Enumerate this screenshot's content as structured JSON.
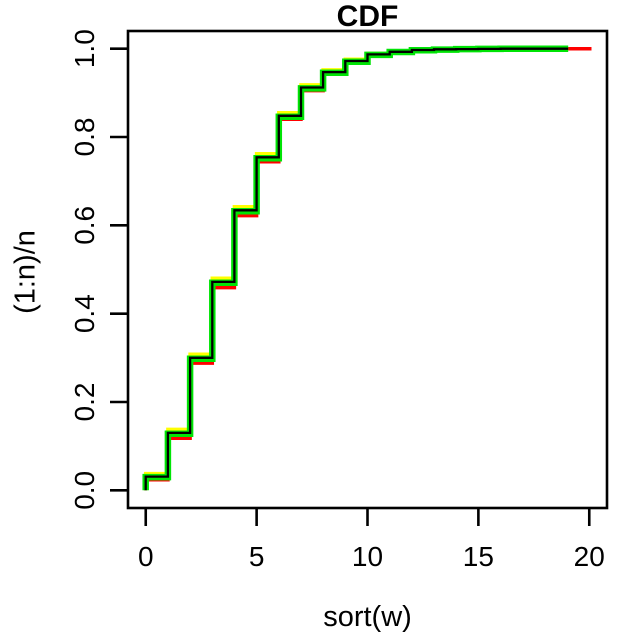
{
  "chart_data": {
    "type": "line",
    "subtype": "step-cdf",
    "title": "CDF",
    "xlabel": "sort(w)",
    "ylabel": "(1:n)/n",
    "xlim": [
      -0.8,
      20.8
    ],
    "ylim": [
      -0.04,
      1.04
    ],
    "grid": false,
    "legend": "none",
    "x_ticks": {
      "values": [
        0,
        5,
        10,
        15,
        20
      ],
      "labels": [
        "0",
        "5",
        "10",
        "15",
        "20"
      ]
    },
    "y_ticks": {
      "values": [
        0,
        0.2,
        0.4,
        0.6,
        0.8,
        1.0
      ],
      "labels": [
        "0.0",
        "0.2",
        "0.4",
        "0.6",
        "0.8",
        "1.0"
      ]
    },
    "series": [
      {
        "name": "red-cdf",
        "color": "#FF0000",
        "line_width": 3.5,
        "x_start": 0,
        "y_start": 0,
        "x_end": 20.1,
        "step_x0": 0,
        "step_dx": 1,
        "levels": [
          0.024,
          0.118,
          0.288,
          0.459,
          0.622,
          0.744,
          0.84,
          0.905,
          0.942,
          0.968,
          0.984,
          0.991,
          0.995,
          0.997,
          0.998,
          0.999,
          0.9995,
          1,
          1,
          1
        ]
      },
      {
        "name": "yellow-cdf",
        "color": "#FFFF00",
        "line_width": 3.5,
        "x_start": 0,
        "y_start": 0,
        "x_end": 19.05,
        "step_x0": 0,
        "step_dx": 1,
        "levels": [
          0.038,
          0.138,
          0.308,
          0.48,
          0.642,
          0.762,
          0.855,
          0.918,
          0.952,
          0.976,
          0.989,
          0.994,
          0.9975,
          0.999,
          0.9995,
          1,
          1,
          1,
          1
        ]
      },
      {
        "name": "green-cdf",
        "color": "#00E405",
        "line_width": 6.5,
        "x_start": 0,
        "y_start": 0,
        "x_end": 19.05,
        "step_x0": 0,
        "step_dx": 1,
        "levels": [
          0.03,
          0.128,
          0.298,
          0.47,
          0.632,
          0.752,
          0.846,
          0.91,
          0.9455,
          0.9705,
          0.986,
          0.9925,
          0.9965,
          0.998,
          0.999,
          0.9995,
          1,
          1,
          1
        ]
      },
      {
        "name": "black-cdf",
        "color": "#000000",
        "line_width": 2.3,
        "x_start": 0,
        "y_start": 0,
        "x_end": 19.05,
        "step_x0": 0,
        "step_dx": 1,
        "levels": [
          0.031,
          0.13,
          0.3,
          0.472,
          0.634,
          0.754,
          0.848,
          0.912,
          0.947,
          0.972,
          0.987,
          0.993,
          0.997,
          0.9985,
          0.999,
          0.9995,
          1,
          1,
          1
        ]
      }
    ]
  }
}
